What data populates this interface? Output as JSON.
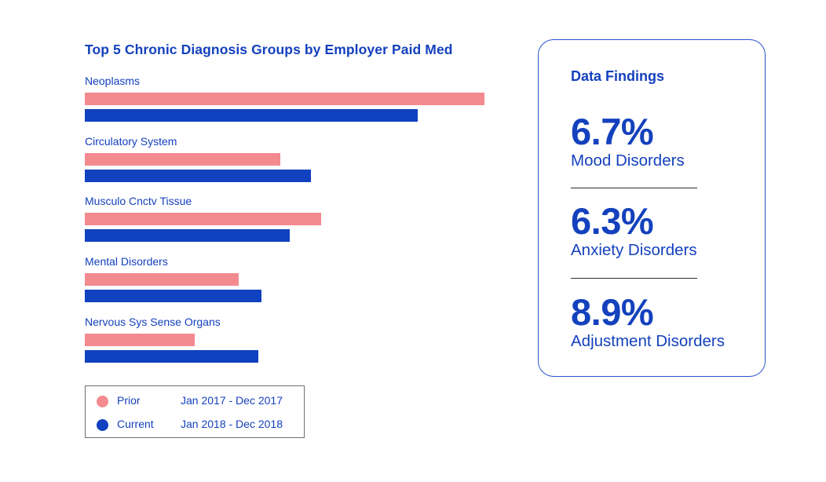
{
  "chart_data": {
    "type": "bar",
    "orientation": "horizontal",
    "title": "Top 5 Chronic Diagnosis Groups by Employer Paid Med",
    "xlabel": "",
    "ylabel": "",
    "axis_visible": false,
    "grid": false,
    "value_scale_note": "No axis shown; values are relative bar lengths (largest bar = 100)",
    "xlim": [
      0,
      100
    ],
    "categories": [
      "Neoplasms",
      "Circulatory System",
      "Musculo Cnctv Tissue",
      "Mental Disorders",
      "Nervous Sys Sense Organs"
    ],
    "series": [
      {
        "name": "Prior",
        "period": "Jan 2017 - Dec 2017",
        "color": "#f38a8f",
        "values": [
          100,
          48.9,
          59.1,
          38.5,
          27.5
        ]
      },
      {
        "name": "Current",
        "period": "Jan 2018 - Dec 2018",
        "color": "#1041bf",
        "values": [
          83.3,
          56.6,
          51.3,
          44.2,
          43.4
        ]
      }
    ],
    "legend": {
      "placement": "bottom-left",
      "entries": [
        {
          "name": "Prior",
          "period": "Jan 2017 - Dec 2017",
          "color": "#f38a8f"
        },
        {
          "name": "Current",
          "period": "Jan 2018 - Dec 2018",
          "color": "#1041bf"
        }
      ]
    }
  },
  "findings": {
    "title": "Data Findings",
    "items": [
      {
        "value": "6.7%",
        "label": "Mood Disorders"
      },
      {
        "value": "6.3%",
        "label": "Anxiety Disorders"
      },
      {
        "value": "8.9%",
        "label": "Adjustment Disorders"
      }
    ]
  },
  "colors": {
    "text": "#1441bd",
    "prior": "#f38a8f",
    "current": "#1041bf",
    "panel_border": "#2a55c8"
  }
}
